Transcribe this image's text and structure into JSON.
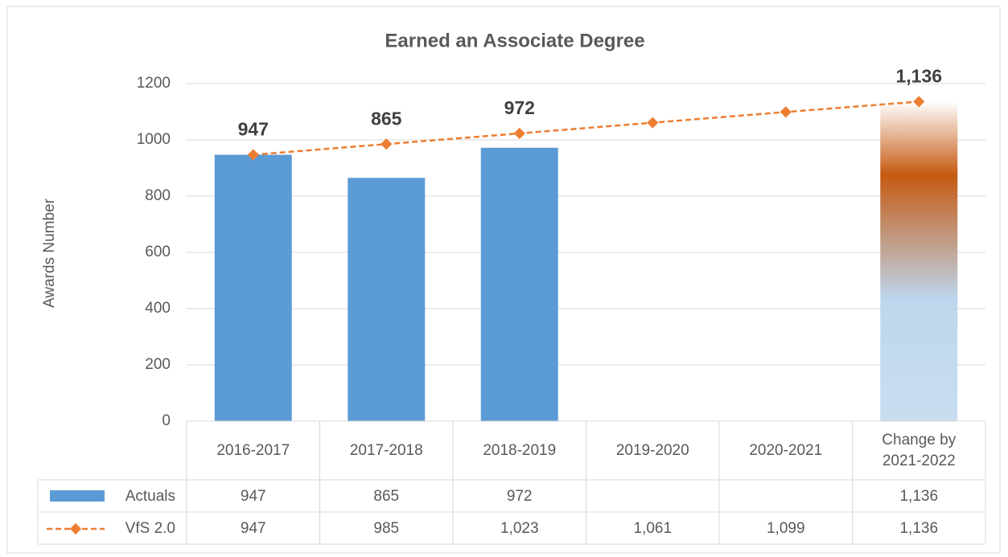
{
  "chart_data": {
    "type": "bar-line-table",
    "title": "Earned an Associate Degree",
    "y_label": "Awards Number",
    "categories": [
      "2016-2017",
      "2017-2018",
      "2018-2019",
      "2019-2020",
      "2020-2021",
      "Change by 2021-2022"
    ],
    "series": [
      {
        "name": "Actuals",
        "type": "bar",
        "color": "#5b9bd5",
        "highlight_color": "#c55a11",
        "values": [
          947,
          865,
          972,
          null,
          null,
          1136
        ],
        "value_labels": [
          "947",
          "865",
          "972",
          null,
          null,
          "1,136"
        ]
      },
      {
        "name": "VfS 2.0",
        "type": "line",
        "color": "#ed7d31",
        "values": [
          947,
          985,
          1023,
          1061,
          1099,
          1136
        ],
        "value_labels": [
          "947",
          "985",
          "1,023",
          "1,061",
          "1,099",
          "1,136"
        ]
      }
    ],
    "ylim": [
      0,
      1200
    ],
    "yticks": [
      0,
      200,
      400,
      600,
      800,
      1000,
      1200
    ],
    "grid": true
  }
}
